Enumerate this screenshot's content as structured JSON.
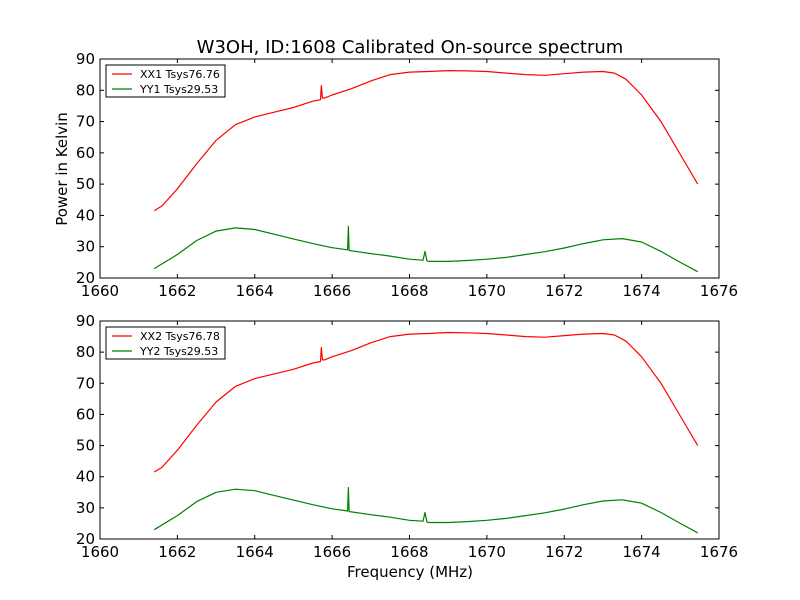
{
  "chart_data": [
    {
      "type": "line",
      "title": "W3OH, ID:1608 Calibrated On-source spectrum",
      "xlabel": "",
      "ylabel": "Power in Kelvin",
      "xlim": [
        1660,
        1676
      ],
      "ylim": [
        20,
        90
      ],
      "xticks": [
        "1660",
        "1662",
        "1664",
        "1666",
        "1668",
        "1670",
        "1672",
        "1674",
        "1676"
      ],
      "yticks": [
        "20",
        "30",
        "40",
        "50",
        "60",
        "70",
        "80",
        "90"
      ],
      "legend_position": "upper-left",
      "series": [
        {
          "name": "XX1 Tsys76.76",
          "color": "#ff0000",
          "x": [
            1661.4,
            1661.6,
            1662.0,
            1662.5,
            1663.0,
            1663.5,
            1664.0,
            1664.5,
            1665.0,
            1665.5,
            1665.7,
            1665.72,
            1665.75,
            1665.8,
            1666.0,
            1666.5,
            1667.0,
            1667.5,
            1668.0,
            1668.5,
            1669.0,
            1669.5,
            1670.0,
            1670.5,
            1671.0,
            1671.5,
            1672.0,
            1672.5,
            1673.0,
            1673.3,
            1673.6,
            1674.0,
            1674.5,
            1675.0,
            1675.45
          ],
          "values": [
            41.5,
            43.0,
            48.5,
            56.5,
            64.0,
            69.0,
            71.5,
            73.0,
            74.5,
            76.5,
            77.0,
            81.5,
            77.5,
            77.5,
            78.5,
            80.5,
            83.0,
            85.0,
            85.8,
            86.0,
            86.3,
            86.2,
            86.0,
            85.5,
            85.0,
            84.8,
            85.3,
            85.8,
            86.0,
            85.5,
            83.5,
            78.5,
            70.0,
            59.5,
            50.0
          ]
        },
        {
          "name": "YY1 Tsys29.53",
          "color": "#008000",
          "x": [
            1661.4,
            1662.0,
            1662.5,
            1663.0,
            1663.5,
            1664.0,
            1664.5,
            1665.0,
            1665.5,
            1666.0,
            1666.4,
            1666.42,
            1666.44,
            1666.5,
            1667.0,
            1667.5,
            1668.0,
            1668.35,
            1668.4,
            1668.45,
            1668.5,
            1669.0,
            1669.5,
            1670.0,
            1670.5,
            1671.0,
            1671.5,
            1672.0,
            1672.5,
            1673.0,
            1673.5,
            1674.0,
            1674.5,
            1675.0,
            1675.45
          ],
          "values": [
            23.0,
            27.5,
            32.0,
            35.0,
            36.0,
            35.5,
            34.0,
            32.5,
            31.0,
            29.7,
            29.0,
            36.5,
            28.8,
            28.7,
            27.8,
            27.0,
            26.0,
            25.7,
            28.5,
            25.5,
            25.3,
            25.3,
            25.6,
            26.0,
            26.6,
            27.5,
            28.4,
            29.6,
            31.0,
            32.2,
            32.6,
            31.5,
            28.5,
            25.0,
            22.0
          ]
        }
      ]
    },
    {
      "type": "line",
      "title": "",
      "xlabel": "Frequency (MHz)",
      "ylabel": "",
      "xlim": [
        1660,
        1676
      ],
      "ylim": [
        20,
        90
      ],
      "xticks": [
        "1660",
        "1662",
        "1664",
        "1666",
        "1668",
        "1670",
        "1672",
        "1674",
        "1676"
      ],
      "yticks": [
        "20",
        "30",
        "40",
        "50",
        "60",
        "70",
        "80",
        "90"
      ],
      "legend_position": "upper-left",
      "series": [
        {
          "name": "XX2 Tsys76.78",
          "color": "#ff0000",
          "x": [
            1661.4,
            1661.6,
            1662.0,
            1662.5,
            1663.0,
            1663.5,
            1664.0,
            1664.5,
            1665.0,
            1665.5,
            1665.7,
            1665.72,
            1665.75,
            1665.8,
            1666.0,
            1666.5,
            1667.0,
            1667.5,
            1668.0,
            1668.5,
            1669.0,
            1669.5,
            1670.0,
            1670.5,
            1671.0,
            1671.5,
            1672.0,
            1672.5,
            1673.0,
            1673.3,
            1673.6,
            1674.0,
            1674.5,
            1675.0,
            1675.45
          ],
          "values": [
            41.5,
            43.0,
            48.5,
            56.5,
            64.0,
            69.0,
            71.5,
            73.0,
            74.5,
            76.5,
            77.0,
            81.5,
            77.5,
            77.5,
            78.5,
            80.5,
            83.0,
            85.0,
            85.8,
            86.0,
            86.3,
            86.2,
            86.0,
            85.5,
            85.0,
            84.8,
            85.3,
            85.8,
            86.0,
            85.5,
            83.5,
            78.5,
            70.0,
            59.5,
            50.0
          ]
        },
        {
          "name": "YY2 Tsys29.53",
          "color": "#008000",
          "x": [
            1661.4,
            1662.0,
            1662.5,
            1663.0,
            1663.5,
            1664.0,
            1664.5,
            1665.0,
            1665.5,
            1666.0,
            1666.4,
            1666.42,
            1666.44,
            1666.5,
            1667.0,
            1667.5,
            1668.0,
            1668.35,
            1668.4,
            1668.45,
            1668.5,
            1669.0,
            1669.5,
            1670.0,
            1670.5,
            1671.0,
            1671.5,
            1672.0,
            1672.5,
            1673.0,
            1673.5,
            1674.0,
            1674.5,
            1675.0,
            1675.45
          ],
          "values": [
            23.0,
            27.5,
            32.0,
            35.0,
            36.0,
            35.5,
            34.0,
            32.5,
            31.0,
            29.7,
            29.0,
            36.5,
            28.8,
            28.7,
            27.8,
            27.0,
            26.0,
            25.7,
            28.5,
            25.5,
            25.3,
            25.3,
            25.6,
            26.0,
            26.6,
            27.5,
            28.4,
            29.6,
            31.0,
            32.2,
            32.6,
            31.5,
            28.5,
            25.0,
            22.0
          ]
        }
      ]
    }
  ]
}
